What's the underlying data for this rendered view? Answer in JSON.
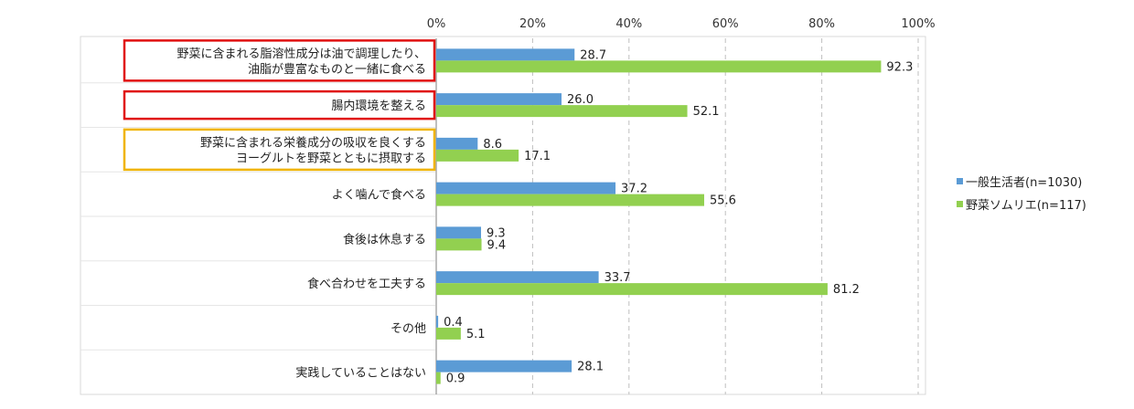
{
  "chart_data": {
    "type": "bar",
    "orientation": "horizontal",
    "xlim": [
      0,
      100
    ],
    "x_ticks": [
      "0%",
      "20%",
      "40%",
      "60%",
      "80%",
      "100%"
    ],
    "grid": "dashed vertical",
    "legend_position": "right",
    "categories": [
      [
        "野菜に含まれる脂溶性成分は油で調理したり、",
        "油脂が豊富なものと一緒に食べる"
      ],
      [
        "腸内環境を整える"
      ],
      [
        "野菜に含まれる栄養成分の吸収を良くする",
        "ヨーグルトを野菜とともに摂取する"
      ],
      [
        "よく噛んで食べる"
      ],
      [
        "食後は休息する"
      ],
      [
        "食べ合わせを工夫する"
      ],
      [
        "その他"
      ],
      [
        "実践していることはない"
      ]
    ],
    "highlight": [
      {
        "category_index": 0,
        "color": "#e01010"
      },
      {
        "category_index": 1,
        "color": "#e01010"
      },
      {
        "category_index": 2,
        "color": "#f0b400"
      }
    ],
    "series": [
      {
        "name": "一般生活者(n=1030)",
        "color": "#5b9bd5",
        "values": [
          28.7,
          26.0,
          8.6,
          37.2,
          9.3,
          33.7,
          0.4,
          28.1
        ]
      },
      {
        "name": "野菜ソムリエ(n=117)",
        "color": "#92d050",
        "values": [
          92.3,
          52.1,
          17.1,
          55.6,
          9.4,
          81.2,
          5.1,
          0.9
        ]
      }
    ]
  }
}
